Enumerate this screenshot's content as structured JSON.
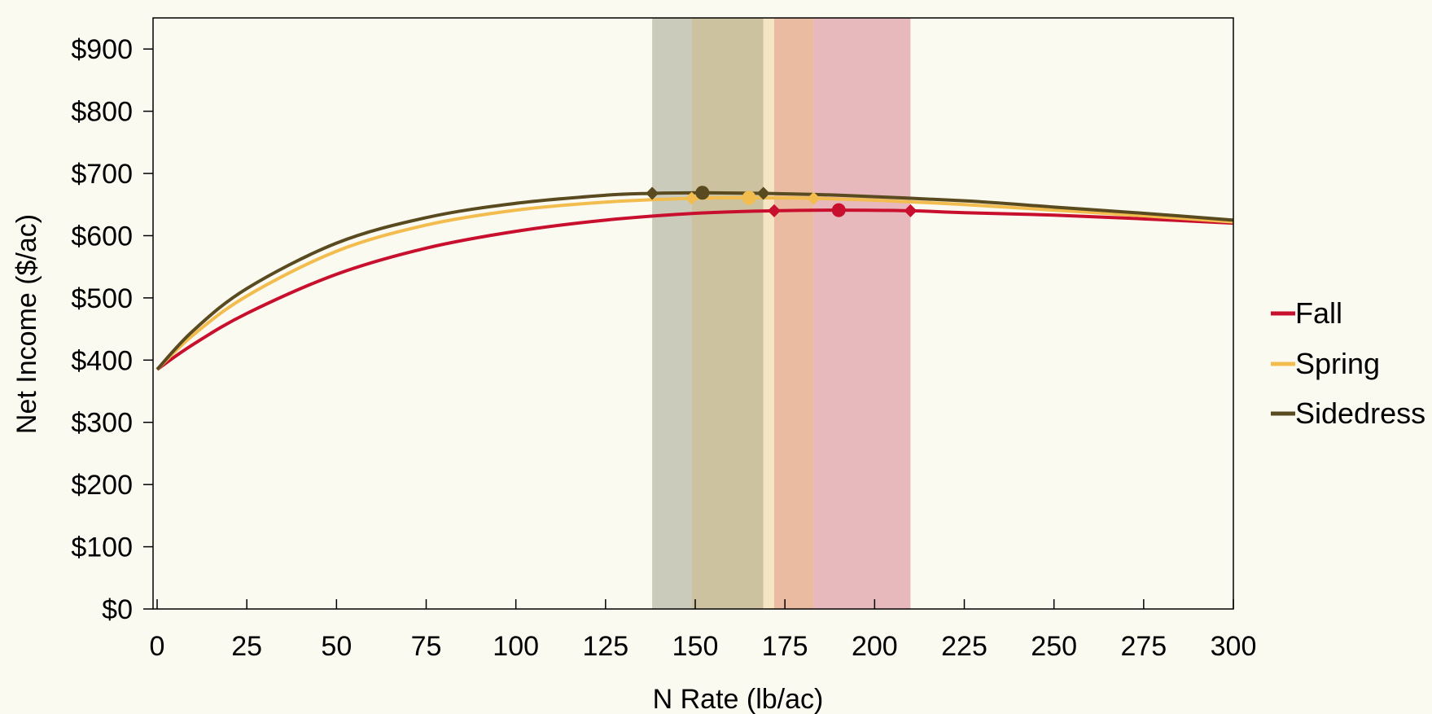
{
  "chart_data": {
    "type": "line",
    "xlabel": "N Rate (lb/ac)",
    "ylabel": "Net Income ($/ac)",
    "xlim": [
      0,
      300
    ],
    "ylim": [
      0,
      950
    ],
    "x_ticks": [
      0,
      25,
      50,
      75,
      100,
      125,
      150,
      175,
      200,
      225,
      250,
      275,
      300
    ],
    "y_ticks": [
      0,
      100,
      200,
      300,
      400,
      500,
      600,
      700,
      800,
      900
    ],
    "y_tick_labels": [
      "$0",
      "$100",
      "$200",
      "$300",
      "$400",
      "$500",
      "$600",
      "$700",
      "$800",
      "$900"
    ],
    "grid": false,
    "legend_position": "right",
    "series": [
      {
        "name": "Fall",
        "color": "#c8102e",
        "x": [
          0,
          10,
          25,
          50,
          75,
          100,
          125,
          150,
          172,
          190,
          210,
          225,
          250,
          275,
          300
        ],
        "y": [
          385,
          425,
          475,
          538,
          580,
          607,
          625,
          636,
          640,
          641,
          640,
          637,
          633,
          627,
          620
        ],
        "optimum": {
          "x": 190,
          "y": 641
        },
        "range_markers": [
          {
            "x": 172,
            "y": 640
          },
          {
            "x": 210,
            "y": 640
          }
        ],
        "range": [
          172,
          210
        ],
        "range_color": "#e8b9bc"
      },
      {
        "name": "Spring",
        "color": "#f2bd4e",
        "x": [
          0,
          10,
          25,
          50,
          75,
          100,
          125,
          149,
          165,
          183,
          200,
          225,
          250,
          275,
          300
        ],
        "y": [
          385,
          440,
          503,
          575,
          617,
          641,
          654,
          660,
          661,
          660,
          657,
          650,
          641,
          632,
          622
        ],
        "optimum": {
          "x": 165,
          "y": 661
        },
        "range_markers": [
          {
            "x": 149,
            "y": 660
          },
          {
            "x": 183,
            "y": 660
          }
        ],
        "range": [
          149,
          183
        ],
        "range_color": "#f5e5c3"
      },
      {
        "name": "Sidedress",
        "color": "#594a20",
        "x": [
          0,
          10,
          25,
          50,
          75,
          100,
          125,
          138,
          152,
          169,
          190,
          225,
          250,
          275,
          300
        ],
        "y": [
          385,
          447,
          515,
          588,
          629,
          652,
          665,
          668,
          669,
          668,
          665,
          656,
          646,
          636,
          625
        ],
        "optimum": {
          "x": 152,
          "y": 669
        },
        "range_markers": [
          {
            "x": 138,
            "y": 668
          },
          {
            "x": 169,
            "y": 668
          }
        ],
        "range": [
          138,
          169
        ],
        "range_color": "#cbcbbc"
      }
    ],
    "band_segments": [
      {
        "from": 138,
        "to": 149,
        "color": "#cbcbbc"
      },
      {
        "from": 149,
        "to": 169,
        "color": "#cdc29f"
      },
      {
        "from": 169,
        "to": 172,
        "color": "#f5e5c3"
      },
      {
        "from": 172,
        "to": 183,
        "color": "#eabba0"
      },
      {
        "from": 183,
        "to": 210,
        "color": "#e8b9bc"
      }
    ]
  }
}
